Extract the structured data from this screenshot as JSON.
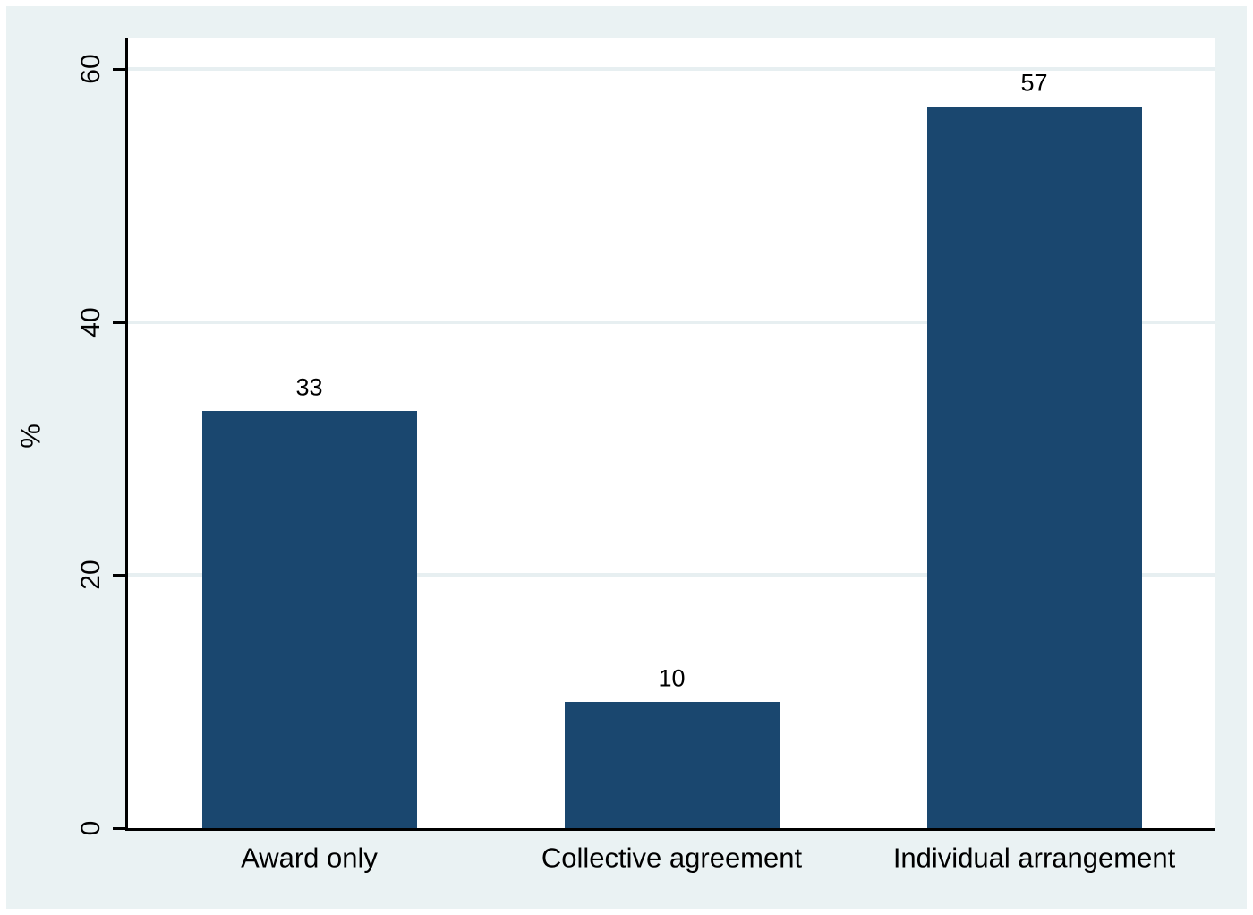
{
  "chart_data": {
    "type": "bar",
    "categories": [
      "Award only",
      "Collective agreement",
      "Individual arrangement"
    ],
    "values": [
      33,
      10,
      57
    ],
    "bar_value_labels": [
      "33",
      "10",
      "57"
    ],
    "title": "",
    "xlabel": "",
    "ylabel": "%",
    "ytick_labels": [
      "0",
      "20",
      "40",
      "60"
    ],
    "yticks": [
      0,
      20,
      40,
      60
    ],
    "gridline_values": [
      20,
      40,
      60
    ],
    "ylim": [
      0,
      62.4
    ],
    "grid": true,
    "legend": "none"
  },
  "colors": {
    "bar_fill": "#1a476f",
    "graph_region_background": "#eaf2f3",
    "plot_background": "#ffffff",
    "gridline": "#e7eff1",
    "axis": "#000000",
    "text": "#000000",
    "page_border": "#ffffff"
  }
}
